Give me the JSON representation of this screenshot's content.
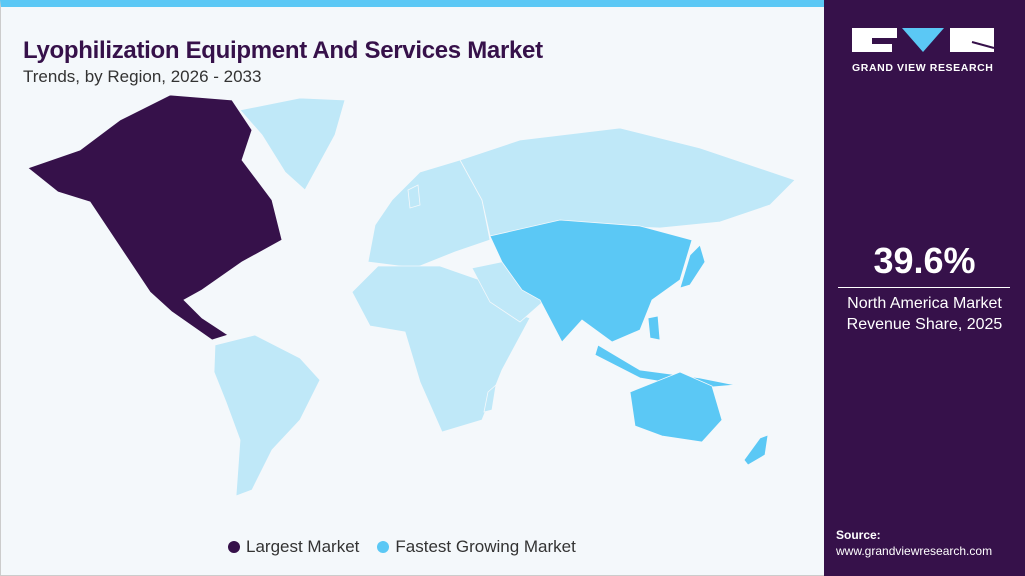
{
  "header": {
    "title": "Lyophilization Equipment And Services Market",
    "subtitle": "Trends, by Region, 2026 - 2033"
  },
  "legend": [
    {
      "label": "Largest Market",
      "color": "#36114a"
    },
    {
      "label": "Fastest Growing Market",
      "color": "#5bc8f5"
    }
  ],
  "map": {
    "base_color": "#bfe8f8",
    "regions": [
      {
        "name": "North America",
        "status": "Largest Market"
      },
      {
        "name": "Asia Pacific",
        "status": "Fastest Growing Market"
      }
    ]
  },
  "sidebar": {
    "brand": "GRAND VIEW RESEARCH",
    "stat_value": "39.6%",
    "stat_label_line1": "North America Market",
    "stat_label_line2": "Revenue Share, 2025",
    "source_label": "Source:",
    "source_url": "www.grandviewresearch.com"
  }
}
